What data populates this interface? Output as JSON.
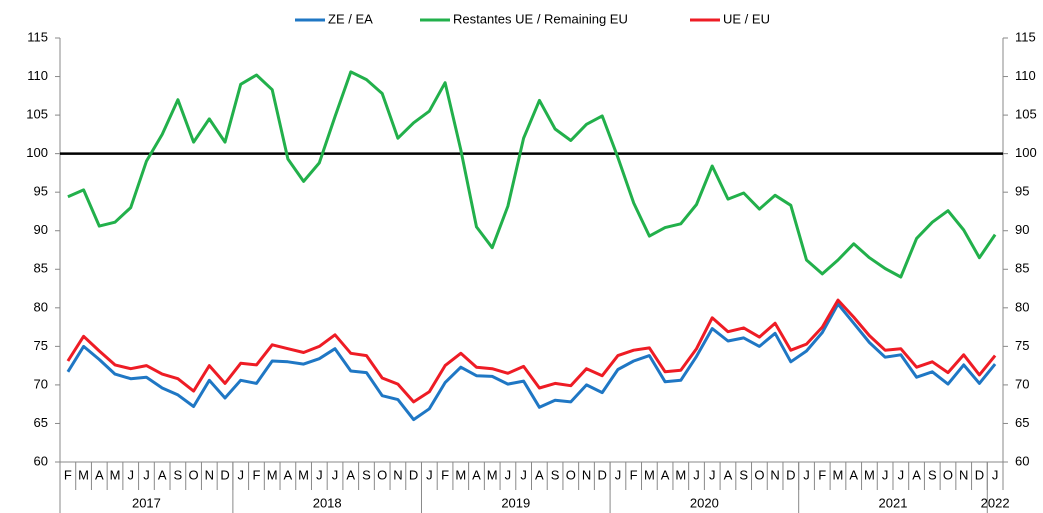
{
  "chart_data": {
    "type": "line",
    "categories": [
      "F",
      "M",
      "A",
      "M",
      "J",
      "J",
      "A",
      "S",
      "O",
      "N",
      "D",
      "J",
      "F",
      "M",
      "A",
      "M",
      "J",
      "J",
      "A",
      "S",
      "O",
      "N",
      "D",
      "J",
      "F",
      "M",
      "A",
      "M",
      "J",
      "J",
      "A",
      "S",
      "O",
      "N",
      "D",
      "J",
      "F",
      "M",
      "A",
      "M",
      "J",
      "J",
      "A",
      "S",
      "O",
      "N",
      "D",
      "J",
      "F",
      "M",
      "A",
      "M",
      "J",
      "J",
      "A",
      "S",
      "O",
      "N",
      "D",
      "J"
    ],
    "years": [
      "2017",
      "2018",
      "2019",
      "2020",
      "2021",
      "2022"
    ],
    "series": [
      {
        "name": "ZE / EA",
        "color": "#1f77c4",
        "values": [
          71.7,
          75.0,
          73.3,
          71.4,
          70.8,
          71.0,
          69.6,
          68.7,
          67.2,
          70.6,
          68.3,
          70.6,
          70.2,
          73.1,
          73.0,
          72.7,
          73.4,
          74.7,
          71.8,
          71.6,
          68.6,
          68.1,
          65.5,
          66.9,
          70.3,
          72.3,
          71.2,
          71.1,
          70.1,
          70.5,
          67.1,
          68.0,
          67.8,
          70.0,
          69.0,
          72.0,
          73.1,
          73.8,
          70.4,
          70.6,
          73.7,
          77.3,
          75.7,
          76.1,
          75.0,
          76.7,
          73.0,
          74.4,
          76.8,
          80.5,
          78.0,
          75.5,
          73.6,
          73.9,
          71.0,
          71.7,
          70.1,
          72.6,
          70.2,
          72.7
        ]
      },
      {
        "name": "Restantes UE / Remaining EU",
        "color": "#22b04b",
        "values": [
          94.4,
          95.3,
          90.6,
          91.1,
          93.0,
          99.0,
          102.5,
          107.0,
          101.5,
          104.5,
          101.5,
          109.0,
          110.2,
          108.3,
          99.3,
          96.4,
          98.8,
          104.8,
          110.6,
          109.6,
          107.8,
          102.0,
          104.0,
          105.5,
          109.2,
          100.5,
          90.5,
          87.8,
          93.2,
          102.0,
          106.9,
          103.2,
          101.7,
          103.8,
          104.9,
          99.5,
          93.6,
          89.3,
          90.4,
          90.9,
          93.4,
          98.4,
          94.1,
          94.9,
          92.8,
          94.6,
          93.3,
          86.2,
          84.4,
          86.2,
          88.3,
          86.5,
          85.1,
          84.0,
          89.0,
          91.1,
          92.6,
          90.1,
          86.5,
          89.5
        ]
      },
      {
        "name": "UE / EU",
        "color": "#ee1c25",
        "values": [
          73.1,
          76.3,
          74.4,
          72.6,
          72.1,
          72.5,
          71.4,
          70.8,
          69.2,
          72.5,
          70.2,
          72.8,
          72.6,
          75.2,
          74.7,
          74.2,
          75.0,
          76.5,
          74.1,
          73.8,
          70.9,
          70.1,
          67.8,
          69.1,
          72.5,
          74.1,
          72.3,
          72.1,
          71.5,
          72.4,
          69.6,
          70.2,
          69.9,
          72.1,
          71.2,
          73.8,
          74.5,
          74.8,
          71.7,
          71.9,
          74.7,
          78.7,
          76.9,
          77.4,
          76.2,
          78.0,
          74.5,
          75.3,
          77.5,
          81.0,
          78.8,
          76.4,
          74.5,
          74.7,
          72.3,
          73.0,
          71.6,
          73.9,
          71.3,
          73.8
        ]
      }
    ],
    "reference_line": 100,
    "ylim": [
      60,
      115
    ],
    "yticks": [
      60,
      65,
      70,
      75,
      80,
      85,
      90,
      95,
      100,
      105,
      110,
      115
    ],
    "y2lim": [
      60,
      115
    ],
    "y2ticks": [
      60,
      65,
      70,
      75,
      80,
      85,
      90,
      95,
      100,
      105,
      110,
      115
    ],
    "legend": "top"
  }
}
